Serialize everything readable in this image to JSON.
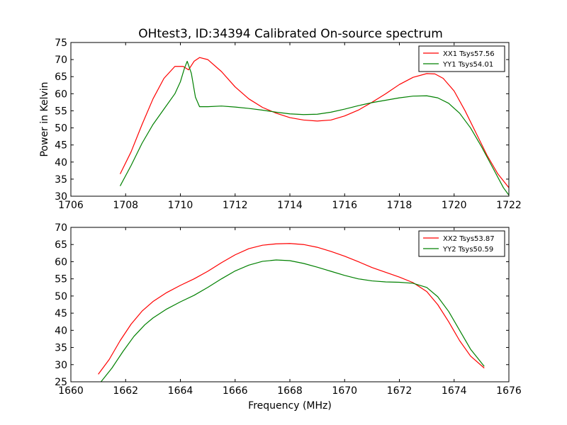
{
  "title": "OHtest3, ID:34394 Calibrated On-source spectrum",
  "chart_data": [
    {
      "type": "line",
      "ylabel": "Power in Kelvin",
      "xlabel": "",
      "xlim": [
        1706,
        1722
      ],
      "ylim": [
        30,
        75
      ],
      "xticks": [
        1706,
        1708,
        1710,
        1712,
        1714,
        1716,
        1718,
        1720,
        1722
      ],
      "yticks": [
        30,
        35,
        40,
        45,
        50,
        55,
        60,
        65,
        70,
        75
      ],
      "grid": false,
      "legend_position": "top-right",
      "series": [
        {
          "name": "XX1 Tsys57.56",
          "color": "#ff0000",
          "x": [
            1707.8,
            1708.2,
            1708.6,
            1709.0,
            1709.4,
            1709.8,
            1710.1,
            1710.3,
            1710.5,
            1710.7,
            1711.0,
            1711.5,
            1712.0,
            1712.5,
            1713.0,
            1713.5,
            1714.0,
            1714.5,
            1715.0,
            1715.5,
            1716.0,
            1716.5,
            1717.0,
            1717.5,
            1718.0,
            1718.5,
            1719.0,
            1719.3,
            1719.6,
            1720.0,
            1720.4,
            1720.8,
            1721.2,
            1721.6,
            1722.0
          ],
          "y": [
            36.5,
            43,
            51,
            58.5,
            64.5,
            68,
            68,
            67,
            69.5,
            70.6,
            70,
            66.5,
            62,
            58.5,
            56,
            54.3,
            53,
            52.3,
            52,
            52.3,
            53.5,
            55.2,
            57.5,
            60,
            62.7,
            64.8,
            65.9,
            65.8,
            64.5,
            60.8,
            55,
            48.5,
            42,
            36.5,
            32.5
          ]
        },
        {
          "name": "YY1 Tsys54.01",
          "color": "#008000",
          "x": [
            1707.8,
            1708.2,
            1708.6,
            1709.0,
            1709.4,
            1709.8,
            1710.0,
            1710.15,
            1710.25,
            1710.4,
            1710.55,
            1710.7,
            1711.0,
            1711.5,
            1712.0,
            1712.5,
            1713.0,
            1713.5,
            1714.0,
            1714.5,
            1715.0,
            1715.5,
            1716.0,
            1716.5,
            1717.0,
            1717.5,
            1718.0,
            1718.5,
            1719.0,
            1719.4,
            1719.8,
            1720.2,
            1720.6,
            1721.0,
            1721.4,
            1721.8,
            1722.0
          ],
          "y": [
            33,
            39,
            45.5,
            51,
            55.5,
            60,
            63.5,
            67.5,
            69.5,
            66,
            59,
            56.2,
            56.2,
            56.4,
            56.1,
            55.7,
            55.2,
            54.6,
            54.1,
            53.9,
            54,
            54.6,
            55.5,
            56.5,
            57.4,
            58.1,
            58.8,
            59.3,
            59.4,
            58.8,
            57.2,
            54.3,
            50,
            44.5,
            38.5,
            32.5,
            30.3
          ]
        }
      ]
    },
    {
      "type": "line",
      "ylabel": "",
      "xlabel": "Frequency (MHz)",
      "xlim": [
        1660,
        1676
      ],
      "ylim": [
        25,
        70
      ],
      "xticks": [
        1660,
        1662,
        1664,
        1666,
        1668,
        1670,
        1672,
        1674,
        1676
      ],
      "yticks": [
        25,
        30,
        35,
        40,
        45,
        50,
        55,
        60,
        65,
        70
      ],
      "grid": false,
      "legend_position": "top-right",
      "series": [
        {
          "name": "XX2 Tsys53.87",
          "color": "#ff0000",
          "x": [
            1661.0,
            1661.4,
            1661.8,
            1662.2,
            1662.6,
            1663.0,
            1663.5,
            1664.0,
            1664.5,
            1665.0,
            1665.5,
            1666.0,
            1666.5,
            1667.0,
            1667.5,
            1668.0,
            1668.5,
            1669.0,
            1669.5,
            1670.0,
            1670.5,
            1671.0,
            1671.5,
            1672.0,
            1672.5,
            1673.0,
            1673.4,
            1673.8,
            1674.2,
            1674.6,
            1675.1
          ],
          "y": [
            27.2,
            31.5,
            37,
            41.8,
            45.6,
            48.4,
            51,
            53.1,
            55,
            57.2,
            59.7,
            62,
            63.8,
            64.8,
            65.2,
            65.3,
            65,
            64.2,
            63,
            61.6,
            60,
            58.3,
            56.9,
            55.5,
            53.9,
            51.3,
            47.5,
            42.5,
            37,
            32.5,
            29
          ]
        },
        {
          "name": "YY2 Tsys50.59",
          "color": "#008000",
          "x": [
            1661.1,
            1661.5,
            1661.9,
            1662.3,
            1662.7,
            1663.0,
            1663.5,
            1664.0,
            1664.5,
            1665.0,
            1665.5,
            1666.0,
            1666.5,
            1667.0,
            1667.5,
            1668.0,
            1668.5,
            1669.0,
            1669.5,
            1670.0,
            1670.5,
            1671.0,
            1671.5,
            1672.0,
            1672.5,
            1673.0,
            1673.4,
            1673.8,
            1674.2,
            1674.6,
            1675.1
          ],
          "y": [
            25,
            29,
            33.8,
            38.2,
            41.6,
            43.6,
            46.2,
            48.3,
            50.2,
            52.5,
            55,
            57.3,
            59,
            60.1,
            60.5,
            60.3,
            59.5,
            58.4,
            57.2,
            56,
            55,
            54.4,
            54.1,
            54,
            53.7,
            52.5,
            49.8,
            45.5,
            40,
            34.5,
            29.5
          ]
        }
      ]
    }
  ]
}
